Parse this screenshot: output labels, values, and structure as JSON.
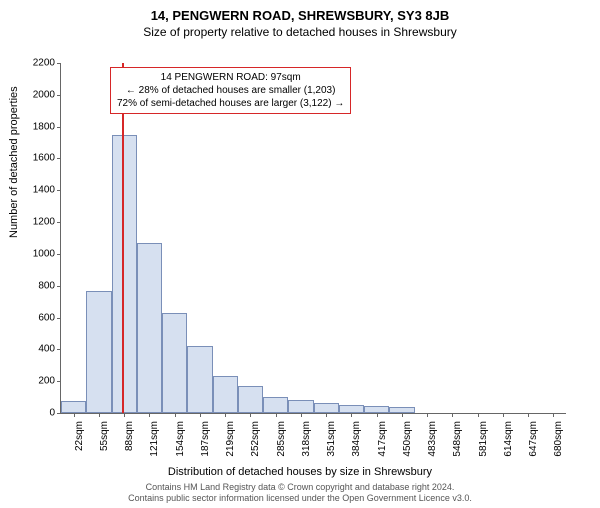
{
  "title": "14, PENGWERN ROAD, SHREWSBURY, SY3 8JB",
  "subtitle": "Size of property relative to detached houses in Shrewsbury",
  "ylabel": "Number of detached properties",
  "xlabel": "Distribution of detached houses by size in Shrewsbury",
  "footnote1": "Contains HM Land Registry data © Crown copyright and database right 2024.",
  "footnote2": "Contains public sector information licensed under the Open Government Licence v3.0.",
  "chart": {
    "type": "histogram",
    "ylim": [
      0,
      2200
    ],
    "yticks": [
      0,
      200,
      400,
      600,
      800,
      1000,
      1200,
      1400,
      1600,
      1800,
      2000,
      2200
    ],
    "xticks": [
      "22sqm",
      "55sqm",
      "88sqm",
      "121sqm",
      "154sqm",
      "187sqm",
      "219sqm",
      "252sqm",
      "285sqm",
      "318sqm",
      "351sqm",
      "384sqm",
      "417sqm",
      "450sqm",
      "483sqm",
      "548sqm",
      "581sqm",
      "614sqm",
      "647sqm",
      "680sqm"
    ],
    "bar_values": [
      75,
      770,
      1750,
      1070,
      630,
      420,
      230,
      170,
      100,
      80,
      65,
      50,
      45,
      40,
      0,
      0,
      0,
      0,
      0,
      0
    ],
    "bar_fill": "#d6e0f0",
    "bar_border": "#7a8fb8",
    "refline_color": "#d62728",
    "refline_bin": 2,
    "background": "#ffffff"
  },
  "annotation": {
    "line1": "14 PENGWERN ROAD: 97sqm",
    "line2": "← 28% of detached houses are smaller (1,203)",
    "line3": "72% of semi-detached houses are larger (3,122) →",
    "border_color": "#d62728"
  }
}
